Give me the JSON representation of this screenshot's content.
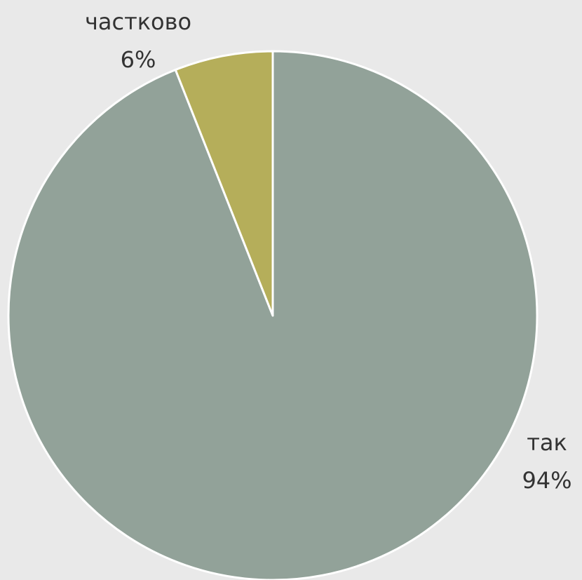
{
  "chart_data": {
    "type": "pie",
    "categories": [
      "так",
      "частково"
    ],
    "values": [
      94,
      6
    ],
    "value_labels": [
      "94%",
      "6%"
    ],
    "colors": [
      "#92a299",
      "#b5ae5a"
    ]
  }
}
